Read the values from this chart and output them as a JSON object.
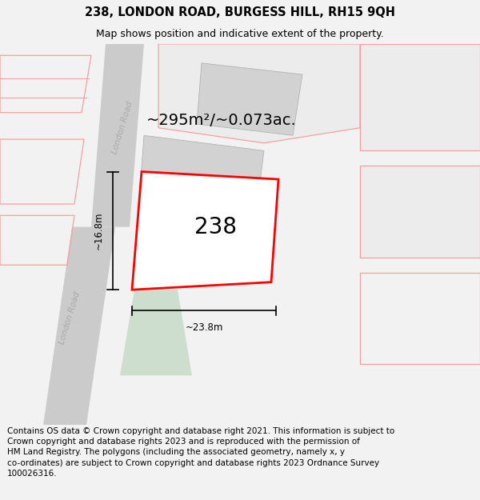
{
  "title": "238, LONDON ROAD, BURGESS HILL, RH15 9QH",
  "subtitle": "Map shows position and indicative extent of the property.",
  "footer": "Contains OS data © Crown copyright and database right 2021. This information is subject to\nCrown copyright and database rights 2023 and is reproduced with the permission of\nHM Land Registry. The polygons (including the associated geometry, namely x, y\nco-ordinates) are subject to Crown copyright and database rights 2023 Ordnance Survey\n100026316.",
  "title_fontsize": 10.5,
  "subtitle_fontsize": 9,
  "footer_fontsize": 7.5,
  "bg_color": "#f2f2f2",
  "map_bg": "#ffffff",
  "area_label": "~295m²/~0.073ac.",
  "width_label": "~23.8m",
  "height_label": "~16.8m",
  "property_number": "238",
  "road_color_dark": "#cbcbcb",
  "road_color_light": "#e0e0e0",
  "plot_edge_color": "#ff0000",
  "neighbor_edge": "#f4a0a0",
  "neighbor_fill": "#ececec",
  "building_fill": "#d2d2d2",
  "green_fill": "#cddece",
  "road_label_color": "#aaaaaa"
}
